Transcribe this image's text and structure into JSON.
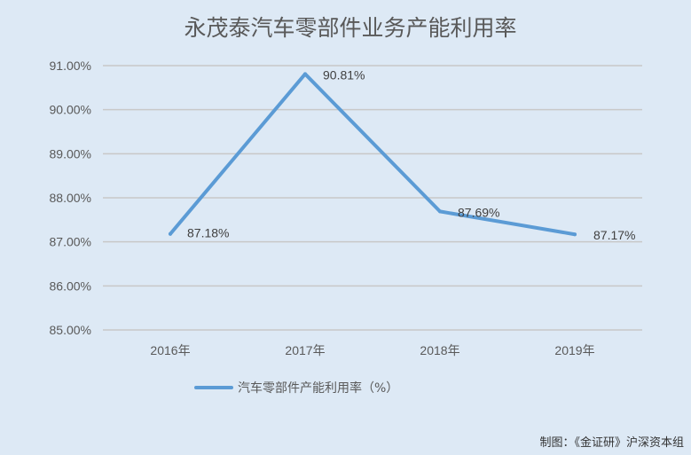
{
  "chart_data": {
    "type": "line",
    "title": "永茂泰汽车零部件业务产能利用率",
    "categories": [
      "2016年",
      "2017年",
      "2018年",
      "2019年"
    ],
    "series": [
      {
        "name": "汽车零部件产能利用率（%）",
        "values": [
          87.18,
          90.81,
          87.69,
          87.17
        ],
        "labels": [
          "87.18%",
          "90.81%",
          "87.69%",
          "87.17%"
        ]
      }
    ],
    "ylim": [
      85,
      91
    ],
    "y_ticks": [
      "85.00%",
      "86.00%",
      "87.00%",
      "88.00%",
      "89.00%",
      "90.00%",
      "91.00%"
    ],
    "y_tick_values": [
      85,
      86,
      87,
      88,
      89,
      90,
      91
    ],
    "grid": true,
    "legend": "bottom",
    "source": "制图：《金证研》沪深资本组"
  },
  "colors": {
    "background": "#dde9f5",
    "line": "#5b9bd5",
    "grid": "#c8c8c8"
  }
}
